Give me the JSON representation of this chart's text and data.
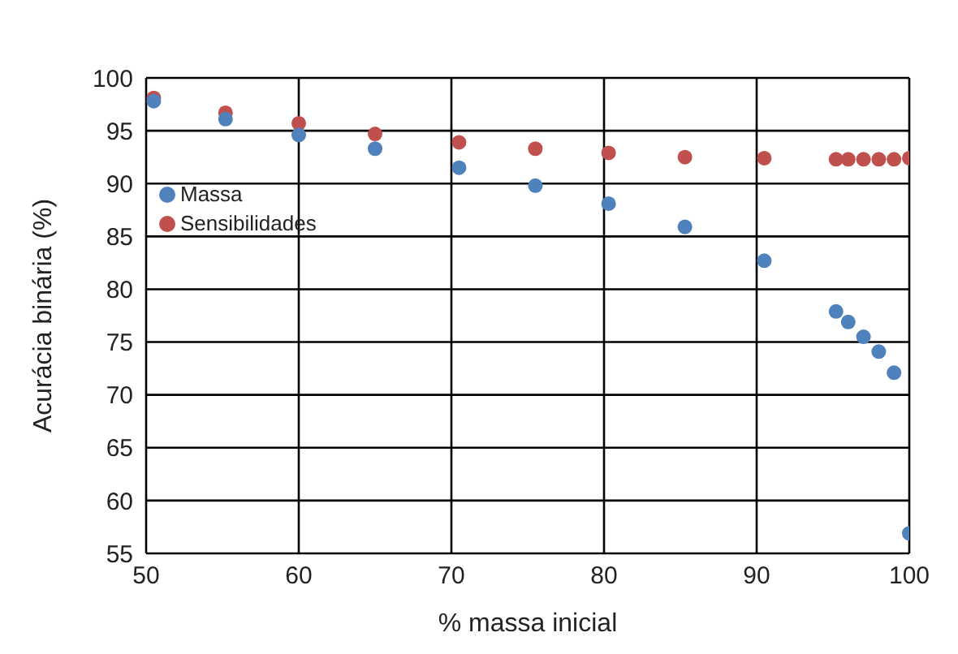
{
  "chart_data": {
    "type": "scatter",
    "xlabel": "% massa inicial",
    "ylabel": "Acurácia binária (%)",
    "xlim": [
      50,
      100
    ],
    "xticks": [
      50,
      60,
      70,
      80,
      90,
      100
    ],
    "ylim": [
      55,
      100
    ],
    "yticks": [
      55,
      60,
      65,
      70,
      75,
      80,
      85,
      90,
      95,
      100
    ],
    "grid": true,
    "legend": "top left",
    "marker": "circle",
    "series": [
      {
        "name": "Massa",
        "color": "#4f81bd",
        "x": [
          50.5,
          55.2,
          60,
          65,
          70.5,
          75.5,
          80.3,
          85.3,
          90.5,
          95.2,
          96,
          97,
          98,
          99,
          100
        ],
        "values": [
          97.8,
          96.1,
          94.6,
          93.3,
          91.5,
          89.8,
          88.1,
          85.9,
          82.7,
          77.9,
          76.9,
          75.5,
          74.1,
          72.1,
          56.9
        ]
      },
      {
        "name": "Sensibilidades",
        "color": "#c0504d",
        "x": [
          50.5,
          55.2,
          60,
          65,
          70.5,
          75.5,
          80.3,
          85.3,
          90.5,
          95.2,
          96,
          97,
          98,
          99,
          100
        ],
        "values": [
          98.1,
          96.7,
          95.7,
          94.7,
          93.9,
          93.3,
          92.9,
          92.5,
          92.4,
          92.3,
          92.3,
          92.3,
          92.3,
          92.3,
          92.4
        ]
      }
    ]
  }
}
